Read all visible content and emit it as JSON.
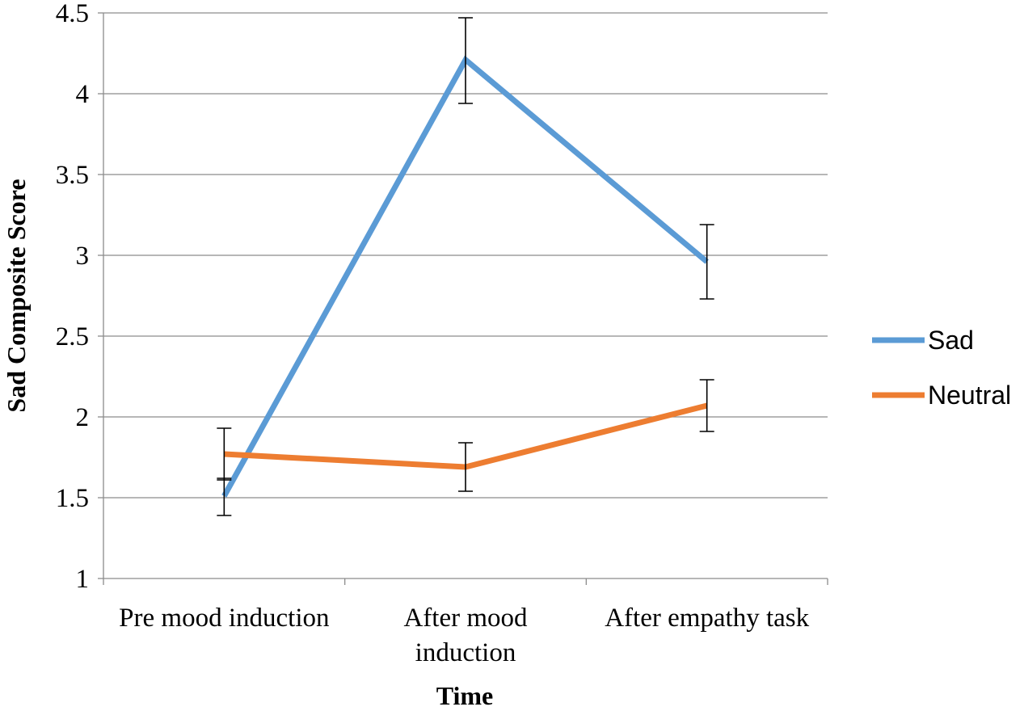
{
  "chart_data": {
    "type": "line",
    "title": "",
    "xlabel": "Time",
    "ylabel": "Sad Composite Score",
    "ylim": [
      1,
      4.5
    ],
    "yticks": [
      "1",
      "1.5",
      "2",
      "2.5",
      "3",
      "3.5",
      "4",
      "4.5"
    ],
    "yticks_values": [
      1,
      1.5,
      2,
      2.5,
      3,
      3.5,
      4,
      4.5
    ],
    "categories": [
      [
        "Pre mood induction"
      ],
      [
        "After mood",
        "induction"
      ],
      [
        "After empathy task"
      ]
    ],
    "grid": true,
    "legend_position": "right",
    "series": [
      {
        "name": "Sad",
        "color": "#5b9bd5",
        "values": [
          1.51,
          4.21,
          2.96
        ],
        "error_low": [
          1.39,
          3.94,
          2.73
        ],
        "error_high": [
          1.62,
          4.47,
          3.19
        ]
      },
      {
        "name": "Neutral",
        "color": "#ed7d31",
        "values": [
          1.77,
          1.69,
          2.07
        ],
        "error_low": [
          1.61,
          1.54,
          1.91
        ],
        "error_high": [
          1.93,
          1.84,
          2.23
        ]
      }
    ]
  }
}
